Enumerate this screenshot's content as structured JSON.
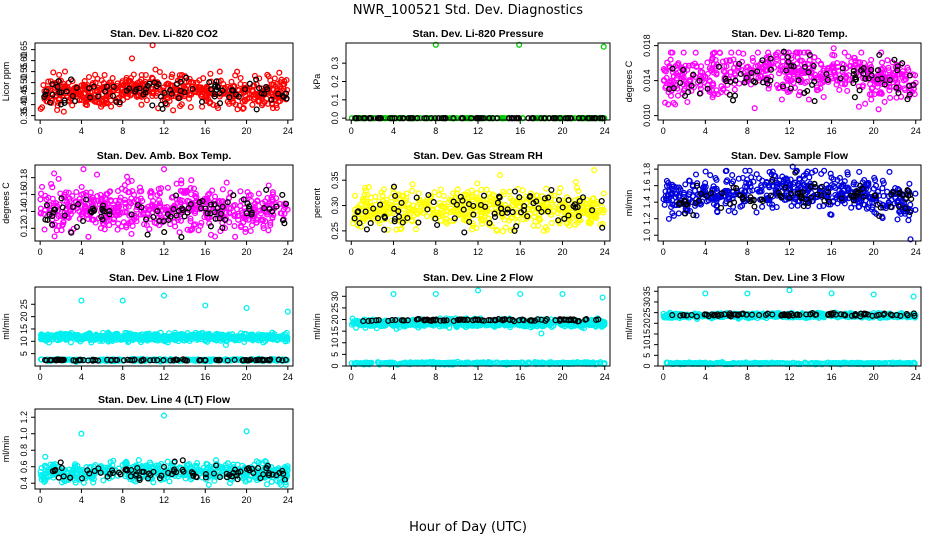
{
  "figure": {
    "title": "NWR_100521  Std. Dev. Diagnostics",
    "xlabel": "Hour of Day (UTC)"
  },
  "chart_data": [
    {
      "type": "scatter",
      "title": "Stan. Dev. Li-820 CO2",
      "ylabel": "Licor ppm",
      "xlim": [
        -0.5,
        24.5
      ],
      "ylim": [
        0.33,
        0.68
      ],
      "yticks": [
        0.35,
        0.4,
        0.45,
        0.5,
        0.55,
        0.6,
        0.65
      ],
      "ytick_labels": [
        "0.35",
        "0.40",
        "0.45",
        "0.50",
        "0.55",
        "0.60",
        "0.65"
      ],
      "xticks": [
        0,
        4,
        8,
        12,
        16,
        20,
        24
      ],
      "ytick_rotate": true,
      "dense": {
        "color": "#ff0000",
        "n": 560,
        "base": 0.45,
        "amp": 0.015,
        "noise": 0.035,
        "min": 0.36,
        "max": 0.6
      },
      "mean": {
        "color": "#000000",
        "n": 90,
        "base": 0.45,
        "amp": 0.01,
        "noise": 0.03
      },
      "outliers": {
        "x": [
          10.9,
          13.2,
          8.9,
          16.5
        ],
        "y": [
          0.67,
          0.68,
          0.61,
          0.54
        ]
      }
    },
    {
      "type": "scatter",
      "title": "Stan. Dev. Li-820 Pressure",
      "ylabel": "kPa",
      "xlim": [
        -0.5,
        24.5
      ],
      "ylim": [
        -0.01,
        0.41
      ],
      "yticks": [
        0.0,
        0.1,
        0.2,
        0.3
      ],
      "ytick_labels": [
        "0.0",
        "0.1",
        "0.2",
        "0.3"
      ],
      "xticks": [
        0,
        4,
        8,
        12,
        16,
        20,
        24
      ],
      "ytick_rotate": true,
      "dense": {
        "color": "#00cc00",
        "n": 150,
        "base": 0.0,
        "amp": 0,
        "noise": 0.0,
        "min": 0,
        "max": 0
      },
      "mean": {
        "color": "#000000",
        "n": 90,
        "base": 0.0,
        "amp": 0,
        "noise": 0.0
      },
      "outliers": {
        "x": [
          8.0,
          15.9,
          23.9
        ],
        "y": [
          0.4,
          0.4,
          0.39
        ]
      }
    },
    {
      "type": "scatter",
      "title": "Stan. Dev. Li-820 Temp.",
      "ylabel": "degrees C",
      "xlim": [
        -0.5,
        24.5
      ],
      "ylim": [
        0.0095,
        0.0183
      ],
      "yticks": [
        0.01,
        0.014,
        0.018
      ],
      "ytick_labels": [
        "0.010",
        "0.014",
        "0.018"
      ],
      "xticks": [
        0,
        4,
        8,
        12,
        16,
        20,
        24
      ],
      "ytick_rotate": true,
      "dense": {
        "color": "#ff00ff",
        "n": 560,
        "base": 0.014,
        "amp": 0.0012,
        "noise": 0.0013,
        "min": 0.01,
        "max": 0.0172
      },
      "mean": {
        "color": "#000000",
        "n": 90,
        "base": 0.0138,
        "amp": 0.001,
        "noise": 0.0011
      },
      "outliers": {
        "x": [
          16.2
        ],
        "y": [
          0.0177
        ]
      }
    },
    {
      "type": "scatter",
      "title": "Stan. Dev. Amb. Box Temp.",
      "ylabel": "degrees C",
      "xlim": [
        -0.5,
        24.5
      ],
      "ylim": [
        0.105,
        0.195
      ],
      "yticks": [
        0.12,
        0.14,
        0.16,
        0.18
      ],
      "ytick_labels": [
        "0.12",
        "0.14",
        "0.16",
        "0.18"
      ],
      "xticks": [
        0,
        4,
        8,
        12,
        16,
        20,
        24
      ],
      "ytick_rotate": true,
      "dense": {
        "color": "#ff00ff",
        "n": 560,
        "base": 0.14,
        "amp": 0.004,
        "noise": 0.014,
        "min": 0.11,
        "max": 0.185
      },
      "mean": {
        "color": "#000000",
        "n": 90,
        "base": 0.138,
        "amp": 0.003,
        "noise": 0.011
      },
      "outliers": {
        "x": [
          4.2,
          12.0
        ],
        "y": [
          0.19,
          0.19
        ]
      }
    },
    {
      "type": "scatter",
      "title": "Stan. Dev. Gas Stream RH",
      "ylabel": "percent",
      "xlim": [
        -0.5,
        24.5
      ],
      "ylim": [
        0.23,
        0.38
      ],
      "yticks": [
        0.25,
        0.3,
        0.35
      ],
      "ytick_labels": [
        "0.25",
        "0.30",
        "0.35"
      ],
      "xticks": [
        0,
        4,
        8,
        12,
        16,
        20,
        24
      ],
      "ytick_rotate": true,
      "dense": {
        "color": "#ffff00",
        "n": 560,
        "base": 0.29,
        "amp": 0.004,
        "noise": 0.018,
        "min": 0.24,
        "max": 0.36
      },
      "mean": {
        "color": "#000000",
        "n": 90,
        "base": 0.29,
        "amp": 0.004,
        "noise": 0.018
      },
      "outliers": {
        "x": [
          23.0
        ],
        "y": [
          0.37
        ]
      }
    },
    {
      "type": "scatter",
      "title": "Stan. Dev. Sample Flow",
      "ylabel": "ml/min",
      "xlim": [
        -0.5,
        24.5
      ],
      "ylim": [
        0.93,
        1.85
      ],
      "yticks": [
        1.0,
        1.2,
        1.4,
        1.6,
        1.8
      ],
      "ytick_labels": [
        "1.0",
        "1.2",
        "1.4",
        "1.6",
        "1.8"
      ],
      "xticks": [
        0,
        4,
        8,
        12,
        16,
        20,
        24
      ],
      "ytick_rotate": true,
      "dense": {
        "color": "#0000dd",
        "n": 560,
        "base": 1.4,
        "amp": 0.16,
        "noise": 0.11,
        "min": 1.02,
        "max": 1.78
      },
      "mean": {
        "color": "#000000",
        "n": 90,
        "base": 1.37,
        "amp": 0.14,
        "noise": 0.09
      },
      "outliers": {
        "x": [
          12.3,
          23.5
        ],
        "y": [
          1.83,
          0.95
        ]
      }
    },
    {
      "type": "scatter",
      "title": "Stan. Dev. Line 1 Flow",
      "ylabel": "ml/min",
      "xlim": [
        -0.5,
        24.5
      ],
      "ylim": [
        0,
        32
      ],
      "yticks": [
        5,
        10,
        15,
        20,
        25
      ],
      "ytick_labels": [
        "5",
        "10",
        "15",
        "20",
        "25"
      ],
      "xticks": [
        0,
        4,
        8,
        12,
        16,
        20,
        24
      ],
      "ytick_rotate": true,
      "dense": {
        "color": "#00f0f0",
        "n": 650,
        "base": 11.5,
        "amp": 0.2,
        "noise": 0.8,
        "min": 9.5,
        "max": 13.5
      },
      "lower": {
        "color": "#00f0f0",
        "n": 300,
        "base": 2.4,
        "noise": 0.2
      },
      "mean": {
        "color": "#000000",
        "n": 90,
        "base": 2.4,
        "amp": 0,
        "noise": 0.12
      },
      "outliers": {
        "x": [
          4.0,
          8.0,
          12.0,
          16.0,
          20.0,
          24.0,
          18.0
        ],
        "y": [
          26.5,
          26.5,
          28.5,
          24.5,
          23.5,
          22.0,
          8.5
        ]
      }
    },
    {
      "type": "scatter",
      "title": "Stan. Dev. Line 2 Flow",
      "ylabel": "ml/min",
      "xlim": [
        -0.5,
        24.5
      ],
      "ylim": [
        0,
        34
      ],
      "yticks": [
        0,
        5,
        10,
        15,
        20,
        25,
        30
      ],
      "ytick_labels": [
        "0",
        "5",
        "10",
        "15",
        "20",
        "25",
        "30"
      ],
      "xticks": [
        0,
        4,
        8,
        12,
        16,
        20,
        24
      ],
      "ytick_rotate": true,
      "dense": {
        "color": "#00f0f0",
        "n": 650,
        "base": 18.3,
        "amp": 0.3,
        "noise": 0.8,
        "min": 15.5,
        "max": 20.5
      },
      "lower": {
        "color": "#00f0f0",
        "n": 300,
        "base": 1.2,
        "noise": 0.25
      },
      "mean": {
        "color": "#000000",
        "n": 90,
        "base": 19.6,
        "amp": 0.2,
        "noise": 0.25
      },
      "outliers": {
        "x": [
          4.0,
          8.0,
          12.0,
          16.0,
          20.0,
          23.8,
          18.0
        ],
        "y": [
          31.0,
          31.0,
          32.5,
          31.0,
          31.0,
          29.5,
          14.0
        ]
      }
    },
    {
      "type": "scatter",
      "title": "Stan. Dev. Line 3 Flow",
      "ylabel": "ml/min",
      "xlim": [
        -0.5,
        24.5
      ],
      "ylim": [
        0,
        37
      ],
      "yticks": [
        0,
        5,
        10,
        15,
        20,
        25,
        30,
        35
      ],
      "ytick_labels": [
        "0",
        "5",
        "10",
        "15",
        "20",
        "25",
        "30",
        "35"
      ],
      "xticks": [
        0,
        4,
        8,
        12,
        16,
        20,
        24
      ],
      "ytick_rotate": true,
      "dense": {
        "color": "#00f0f0",
        "n": 650,
        "base": 23.5,
        "amp": 0.2,
        "noise": 0.5,
        "min": 22,
        "max": 25.5
      },
      "lower": {
        "color": "#00f0f0",
        "n": 300,
        "base": 1.2,
        "noise": 0.2
      },
      "mean": {
        "color": "#000000",
        "n": 90,
        "base": 23.8,
        "amp": 0.2,
        "noise": 0.3
      },
      "outliers": {
        "x": [
          4.0,
          8.0,
          12.0,
          16.0,
          20.0,
          23.8
        ],
        "y": [
          34.0,
          34.0,
          35.5,
          34.0,
          33.5,
          32.5
        ]
      }
    },
    {
      "type": "scatter",
      "title": "Stan. Dev. Line 4 (LT) Flow",
      "ylabel": "ml/min",
      "xlim": [
        -0.5,
        24.5
      ],
      "ylim": [
        0.33,
        1.3
      ],
      "yticks": [
        0.4,
        0.6,
        0.8,
        1.0,
        1.2
      ],
      "ytick_labels": [
        "0.4",
        "0.6",
        "0.8",
        "1.0",
        "1.2"
      ],
      "xticks": [
        0,
        4,
        8,
        12,
        16,
        20,
        24
      ],
      "ytick_rotate": true,
      "dense": {
        "color": "#00f0f0",
        "n": 560,
        "base": 0.52,
        "amp": 0.02,
        "noise": 0.055,
        "min": 0.38,
        "max": 0.68
      },
      "mean": {
        "color": "#000000",
        "n": 90,
        "base": 0.52,
        "amp": 0.02,
        "noise": 0.05
      },
      "outliers": {
        "x": [
          4.0,
          12.0,
          20.0,
          0.5,
          23.8
        ],
        "y": [
          1.0,
          1.22,
          1.03,
          0.72,
          0.38
        ]
      }
    }
  ]
}
